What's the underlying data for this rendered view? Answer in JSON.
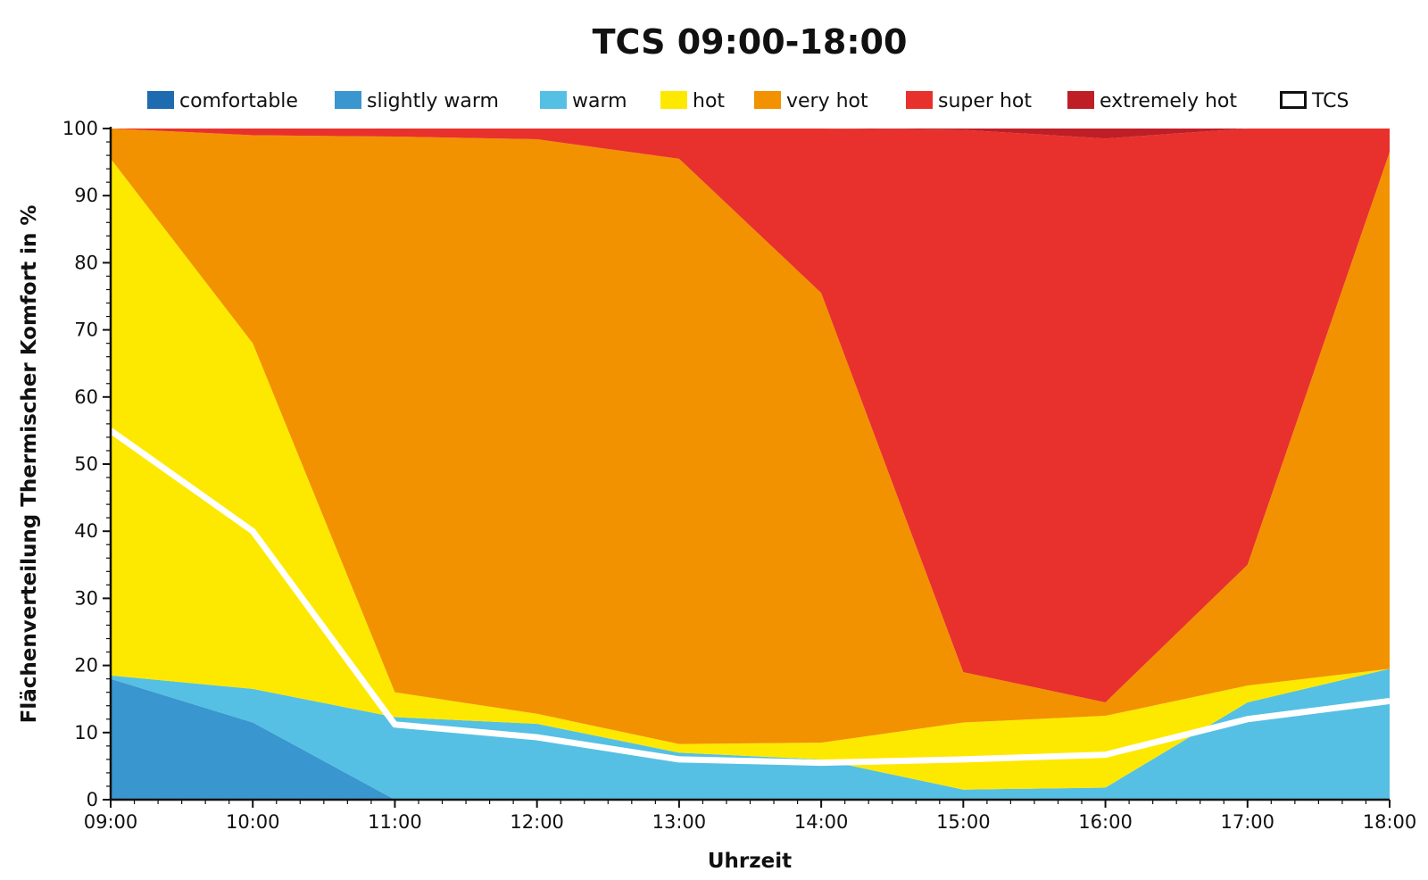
{
  "chart_data": {
    "type": "area",
    "stacked": true,
    "title": "TCS 09:00-18:00",
    "xlabel": "Uhrzeit",
    "ylabel": "Flächenverteilung Thermischer Komfort in %",
    "categories": [
      "09:00",
      "10:00",
      "11:00",
      "12:00",
      "13:00",
      "14:00",
      "15:00",
      "16:00",
      "17:00",
      "18:00"
    ],
    "ylim": [
      0,
      100
    ],
    "yticks": [
      0,
      10,
      20,
      30,
      40,
      50,
      60,
      70,
      80,
      90,
      100
    ],
    "grid": false,
    "legend_position": "top",
    "series": [
      {
        "name": "comfortable",
        "color": "#1f6bb0",
        "values": [
          0,
          0,
          0,
          0,
          0,
          0,
          0,
          0,
          0,
          0
        ]
      },
      {
        "name": "slightly warm",
        "color": "#3a96ce",
        "values": [
          18,
          11.5,
          0,
          0,
          0,
          0,
          0,
          0,
          0,
          0
        ]
      },
      {
        "name": "warm",
        "color": "#55c0e3",
        "values": [
          0.5,
          5,
          12.3,
          11.3,
          7,
          6,
          1.5,
          1.8,
          14.5,
          19.5
        ]
      },
      {
        "name": "hot",
        "color": "#fde900",
        "values": [
          77,
          51.5,
          3.7,
          1.5,
          1.3,
          2.5,
          10,
          10.7,
          2.5,
          0
        ]
      },
      {
        "name": "very hot",
        "color": "#f29200",
        "values": [
          4.5,
          31,
          82.8,
          85.6,
          87.2,
          67,
          7.5,
          2,
          18,
          77
        ]
      },
      {
        "name": "super hot",
        "color": "#e8312c",
        "values": [
          0,
          1,
          1.2,
          1.6,
          4.5,
          24.5,
          80.8,
          84,
          65,
          3.5
        ]
      },
      {
        "name": "extremely hot",
        "color": "#c01e26",
        "values": [
          0,
          0,
          0,
          0,
          0,
          0,
          0.2,
          1.5,
          0,
          0
        ]
      }
    ],
    "line_series": [
      {
        "name": "TCS",
        "color": "#ffffff",
        "values": [
          55,
          40,
          11.2,
          9.3,
          6,
          5.5,
          6,
          6.7,
          12,
          14.7
        ]
      }
    ]
  }
}
